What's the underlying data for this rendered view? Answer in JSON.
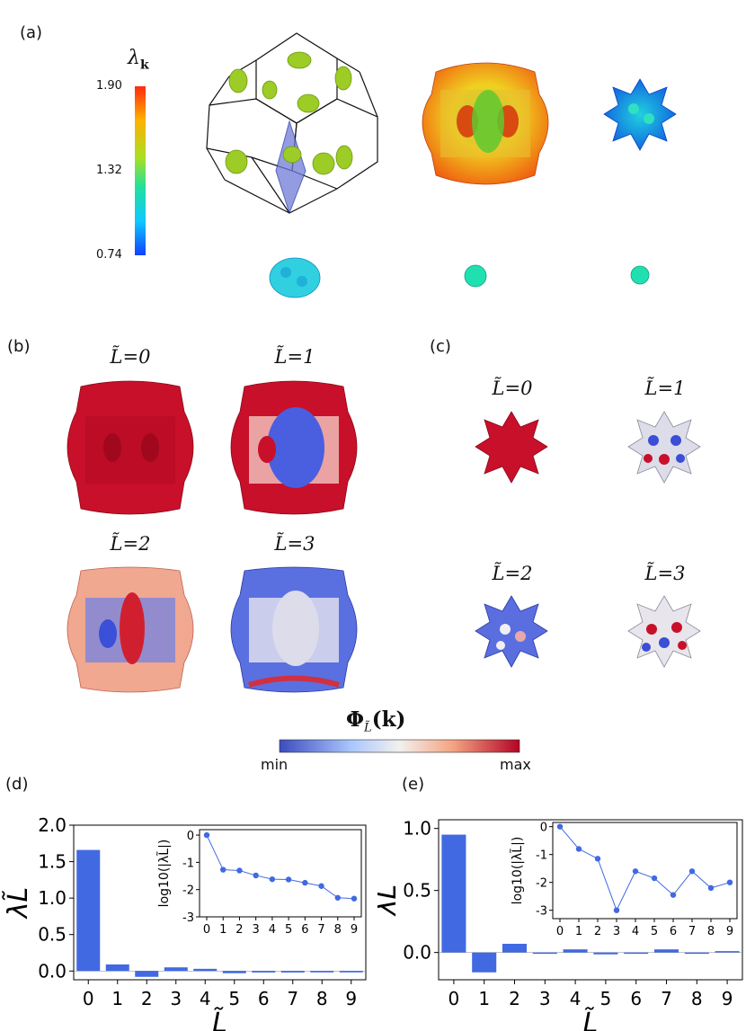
{
  "panels": {
    "a": "(a)",
    "b": "(b)",
    "c": "(c)",
    "d": "(d)",
    "e": "(e)"
  },
  "colorbar_a": {
    "symbol": "λ",
    "subscript": "k",
    "ticks": [
      "1.90",
      "1.32",
      "0.74"
    ],
    "colors": [
      "#ff2a10",
      "#ffb000",
      "#a8e020",
      "#20e0a0",
      "#10c8ff",
      "#1040ff"
    ]
  },
  "panel_b": {
    "titles": [
      "0",
      "1",
      "2",
      "3"
    ],
    "symbol": "L̃="
  },
  "panel_c": {
    "titles": [
      "0",
      "1",
      "2",
      "3"
    ],
    "symbol": "L̃="
  },
  "phi_colorbar": {
    "label": "Φ",
    "sub": "L̃",
    "arg": "(k)",
    "min": "min",
    "max": "max",
    "colors": [
      "#3b4cc0",
      "#aac7fd",
      "#f2f0ee",
      "#f4a582",
      "#b40426"
    ]
  },
  "chart_data": [
    {
      "type": "bar",
      "panel": "(d)",
      "categories": [
        "0",
        "1",
        "2",
        "3",
        "4",
        "5",
        "6",
        "7",
        "8",
        "9"
      ],
      "values": [
        1.66,
        0.09,
        -0.08,
        0.05,
        0.03,
        -0.03,
        -0.02,
        -0.02,
        -0.005,
        -0.004
      ],
      "ylim": [
        -0.12,
        2.0
      ],
      "yticks": [
        "0.0",
        "0.5",
        "1.0",
        "1.5",
        "2.0"
      ],
      "ylabel": "λL̃",
      "xlabel": "L̃",
      "bar_color": "#4169e1",
      "inset": {
        "type": "line",
        "x": [
          0,
          1,
          2,
          3,
          4,
          5,
          6,
          7,
          8,
          9
        ],
        "y": [
          0.0,
          -1.27,
          -1.3,
          -1.48,
          -1.62,
          -1.63,
          -1.75,
          -1.87,
          -2.3,
          -2.33
        ],
        "ylim": [
          -3,
          0.2
        ],
        "yticks": [
          "0",
          "-1",
          "-2",
          "-3"
        ],
        "ylabel": "log10(|λL̃|)",
        "color": "#4169e1"
      }
    },
    {
      "type": "bar",
      "panel": "(e)",
      "categories": [
        "0",
        "1",
        "2",
        "3",
        "4",
        "5",
        "6",
        "7",
        "8",
        "9"
      ],
      "values": [
        0.95,
        -0.16,
        0.07,
        -0.003,
        0.025,
        -0.015,
        -0.004,
        0.025,
        -0.006,
        0.011
      ],
      "ylim": [
        -0.22,
        1.07
      ],
      "yticks": [
        "0.0",
        "0.5",
        "1.0"
      ],
      "ylabel": "λL̃",
      "xlabel": "L̃",
      "bar_color": "#4169e1",
      "inset": {
        "type": "line",
        "x": [
          0,
          1,
          2,
          3,
          4,
          5,
          6,
          7,
          8,
          9
        ],
        "y": [
          0.0,
          -0.8,
          -1.15,
          -3.0,
          -1.6,
          -1.85,
          -2.45,
          -1.6,
          -2.2,
          -2.0
        ],
        "ylim": [
          -3.3,
          0.15
        ],
        "yticks": [
          "0",
          "-1",
          "-2",
          "-3"
        ],
        "ylabel": "log10(|λL̃|)",
        "color": "#4169e1"
      }
    }
  ]
}
